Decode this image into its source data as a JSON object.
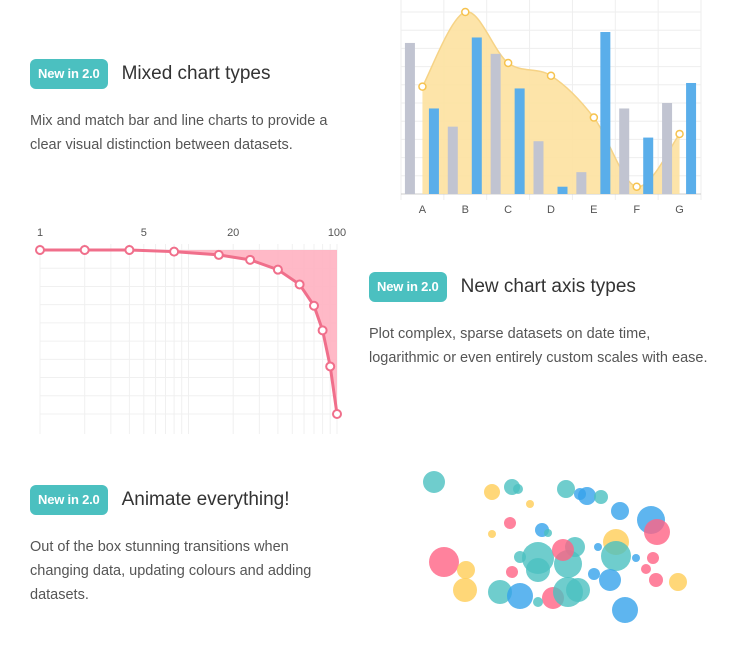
{
  "features": [
    {
      "badge": "New in 2.0",
      "title": "Mixed chart types",
      "description": "Mix and match bar and line charts to provide a clear visual distinction between datasets."
    },
    {
      "badge": "New in 2.0",
      "title": "New chart axis types",
      "description": "Plot complex, sparse datasets on date time, logarithmic or even entirely custom scales with ease."
    },
    {
      "badge": "New in 2.0",
      "title": "Animate everything!",
      "description": "Out of the box stunning transitions when changing data, updating colours and adding datasets."
    }
  ],
  "chart_data": [
    {
      "type": "bar",
      "categories": [
        "A",
        "B",
        "C",
        "D",
        "E",
        "F",
        "G"
      ],
      "ylim": [
        0,
        100
      ],
      "grid": true,
      "series": [
        {
          "type": "bar",
          "color": "#c1c4d1",
          "values": [
            83,
            37,
            77,
            29,
            12,
            47,
            50
          ]
        },
        {
          "type": "bar",
          "color": "#5aaeea",
          "values": [
            47,
            86,
            58,
            4,
            89,
            31,
            61
          ]
        },
        {
          "type": "area",
          "color": "#fde1a0",
          "values": [
            59,
            100,
            72,
            65,
            42,
            4,
            33
          ]
        }
      ]
    },
    {
      "type": "line",
      "xscale": "log",
      "xticks": [
        "1",
        "5",
        "20",
        "100"
      ],
      "xlim": [
        1,
        100
      ],
      "ylim": [
        -100,
        0
      ],
      "grid": true,
      "fill_color": "#ffb1c1",
      "line_color": "#f06f8b",
      "x": [
        1,
        2,
        4,
        8,
        16,
        26,
        40,
        56,
        70,
        80,
        90,
        100
      ],
      "y": [
        0,
        0,
        0,
        -1,
        -3,
        -6,
        -12,
        -21,
        -34,
        -49,
        -71,
        -100
      ]
    },
    {
      "type": "scatter",
      "variant": "bubble",
      "palette": [
        "#4bc0c0",
        "#ffcd56",
        "#ff6384",
        "#36a2eb"
      ],
      "points": [
        {
          "x": 14,
          "y": 88,
          "r": 11,
          "c": 0
        },
        {
          "x": 72,
          "y": 78,
          "r": 8,
          "c": 1
        },
        {
          "x": 92,
          "y": 83,
          "r": 8,
          "c": 0
        },
        {
          "x": 98,
          "y": 81,
          "r": 5,
          "c": 0
        },
        {
          "x": 146,
          "y": 81,
          "r": 9,
          "c": 0
        },
        {
          "x": 167,
          "y": 74,
          "r": 9,
          "c": 3
        },
        {
          "x": 160,
          "y": 76,
          "r": 6,
          "c": 3
        },
        {
          "x": 181,
          "y": 73,
          "r": 7,
          "c": 0
        },
        {
          "x": 110,
          "y": 66,
          "r": 4,
          "c": 1
        },
        {
          "x": 200,
          "y": 59,
          "r": 9,
          "c": 3
        },
        {
          "x": 231,
          "y": 50,
          "r": 14,
          "c": 3
        },
        {
          "x": 237,
          "y": 38,
          "r": 13,
          "c": 2
        },
        {
          "x": 122,
          "y": 40,
          "r": 7,
          "c": 3
        },
        {
          "x": 128,
          "y": 37,
          "r": 4,
          "c": 0
        },
        {
          "x": 72,
          "y": 36,
          "r": 4,
          "c": 1
        },
        {
          "x": 90,
          "y": 47,
          "r": 6,
          "c": 2
        },
        {
          "x": 196,
          "y": 28,
          "r": 13,
          "c": 1
        },
        {
          "x": 178,
          "y": 23,
          "r": 4,
          "c": 3
        },
        {
          "x": 155,
          "y": 23,
          "r": 10,
          "c": 0
        },
        {
          "x": 196,
          "y": 14,
          "r": 15,
          "c": 0
        },
        {
          "x": 233,
          "y": 12,
          "r": 6,
          "c": 2
        },
        {
          "x": 216,
          "y": 12,
          "r": 4,
          "c": 3
        },
        {
          "x": 24,
          "y": 8,
          "r": 15,
          "c": 2
        },
        {
          "x": 46,
          "y": 0,
          "r": 9,
          "c": 1
        },
        {
          "x": 118,
          "y": 0,
          "r": 12,
          "c": 0
        },
        {
          "x": 148,
          "y": 6,
          "r": 14,
          "c": 0
        },
        {
          "x": 92,
          "y": -2,
          "r": 6,
          "c": 2
        },
        {
          "x": 100,
          "y": 13,
          "r": 6,
          "c": 0
        },
        {
          "x": 118,
          "y": 12,
          "r": 16,
          "c": 0
        },
        {
          "x": 143,
          "y": 20,
          "r": 11,
          "c": 2
        },
        {
          "x": 158,
          "y": -20,
          "r": 12,
          "c": 0
        },
        {
          "x": 190,
          "y": -10,
          "r": 11,
          "c": 3
        },
        {
          "x": 236,
          "y": -10,
          "r": 7,
          "c": 2
        },
        {
          "x": 258,
          "y": -12,
          "r": 9,
          "c": 1
        },
        {
          "x": 45,
          "y": -20,
          "r": 12,
          "c": 1
        },
        {
          "x": 80,
          "y": -22,
          "r": 12,
          "c": 0
        },
        {
          "x": 100,
          "y": -26,
          "r": 13,
          "c": 3
        },
        {
          "x": 133,
          "y": -28,
          "r": 11,
          "c": 2
        },
        {
          "x": 148,
          "y": -22,
          "r": 15,
          "c": 0
        },
        {
          "x": 118,
          "y": -32,
          "r": 5,
          "c": 0
        },
        {
          "x": 205,
          "y": -40,
          "r": 13,
          "c": 3
        },
        {
          "x": 174,
          "y": -4,
          "r": 6,
          "c": 3
        },
        {
          "x": 226,
          "y": 1,
          "r": 5,
          "c": 2
        }
      ]
    }
  ]
}
